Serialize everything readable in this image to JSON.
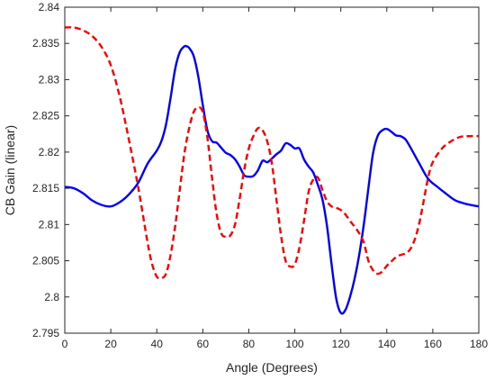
{
  "chart_data": {
    "type": "line",
    "xlabel": "Angle (Degrees)",
    "ylabel": "CB Gain (linear)",
    "xlim": [
      0,
      180
    ],
    "ylim": [
      2.795,
      2.84
    ],
    "xticks": [
      0,
      20,
      40,
      60,
      80,
      100,
      120,
      140,
      160,
      180
    ],
    "yticks": [
      2.795,
      2.8,
      2.805,
      2.81,
      2.815,
      2.82,
      2.825,
      2.83,
      2.835,
      2.84
    ],
    "ytick_labels": [
      "2.795",
      "2.8",
      "2.805",
      "2.81",
      "2.815",
      "2.82",
      "2.825",
      "2.83",
      "2.835",
      "2.84"
    ],
    "grid": false,
    "series": [
      {
        "color": "#0000ff",
        "style": "solid",
        "x": [
          0,
          4,
          8,
          12,
          16,
          20,
          24,
          28,
          32,
          36,
          40,
          42,
          44,
          46,
          48,
          50,
          52,
          53,
          54,
          56,
          58,
          60,
          62,
          64,
          66,
          68,
          70,
          72,
          74,
          76,
          78,
          80,
          82,
          84,
          86,
          88,
          90,
          92,
          94,
          96,
          98,
          100,
          102,
          104,
          106,
          108,
          110,
          112,
          114,
          116,
          118,
          120,
          122,
          124,
          126,
          128,
          130,
          132,
          134,
          136,
          138,
          140,
          142,
          144,
          146,
          148,
          150,
          154,
          158,
          162,
          166,
          170,
          175,
          180
        ],
        "y": [
          2.8152,
          2.815,
          2.8143,
          2.8133,
          2.8127,
          2.8125,
          2.8131,
          2.8142,
          2.8158,
          2.8184,
          2.8202,
          2.8215,
          2.8238,
          2.8275,
          2.8315,
          2.8338,
          2.8346,
          2.8346,
          2.8344,
          2.8333,
          2.8305,
          2.8265,
          2.823,
          2.8215,
          2.8213,
          2.8206,
          2.8199,
          2.8196,
          2.819,
          2.818,
          2.8168,
          2.8166,
          2.8167,
          2.8175,
          2.8188,
          2.8186,
          2.8191,
          2.8197,
          2.8202,
          2.8212,
          2.821,
          2.8205,
          2.8205,
          2.819,
          2.818,
          2.8172,
          2.8155,
          2.8135,
          2.8098,
          2.8045,
          2.7998,
          2.7978,
          2.7982,
          2.8,
          2.8025,
          2.8058,
          2.81,
          2.815,
          2.8198,
          2.8222,
          2.823,
          2.8232,
          2.8228,
          2.8223,
          2.8222,
          2.8218,
          2.8208,
          2.8185,
          2.8163,
          2.8152,
          2.8142,
          2.8133,
          2.8128,
          2.8125
        ]
      },
      {
        "color": "#ff0000",
        "style": "dashed",
        "x": [
          0,
          4,
          8,
          12,
          16,
          20,
          24,
          28,
          32,
          36,
          38,
          40,
          42,
          44,
          46,
          48,
          50,
          52,
          54,
          56,
          58,
          60,
          62,
          64,
          66,
          68,
          70,
          72,
          74,
          76,
          78,
          80,
          82,
          84,
          86,
          88,
          90,
          92,
          94,
          96,
          98,
          100,
          102,
          104,
          106,
          108,
          110,
          112,
          114,
          116,
          118,
          120,
          122,
          124,
          126,
          128,
          130,
          132,
          134,
          136,
          138,
          140,
          142,
          144,
          146,
          148,
          150,
          152,
          154,
          156,
          158,
          160,
          164,
          168,
          172,
          176,
          180
        ],
        "y": [
          2.8372,
          2.8372,
          2.8368,
          2.836,
          2.8345,
          2.832,
          2.8275,
          2.8215,
          2.815,
          2.8075,
          2.8045,
          2.8028,
          2.8026,
          2.8032,
          2.8058,
          2.8098,
          2.8148,
          2.8198,
          2.8232,
          2.8255,
          2.8262,
          2.8255,
          2.822,
          2.8165,
          2.8115,
          2.8088,
          2.8083,
          2.8085,
          2.81,
          2.8135,
          2.8175,
          2.8205,
          2.8222,
          2.8233,
          2.823,
          2.8215,
          2.8185,
          2.8135,
          2.8085,
          2.805,
          2.8042,
          2.8045,
          2.8068,
          2.8105,
          2.8145,
          2.8162,
          2.8165,
          2.8148,
          2.8132,
          2.8125,
          2.8123,
          2.812,
          2.8114,
          2.8105,
          2.8097,
          2.8088,
          2.8075,
          2.805,
          2.8037,
          2.8032,
          2.8035,
          2.8043,
          2.8049,
          2.8055,
          2.8058,
          2.806,
          2.8065,
          2.8078,
          2.81,
          2.8132,
          2.8165,
          2.8186,
          2.8205,
          2.8215,
          2.8221,
          2.8222,
          2.8222
        ]
      }
    ]
  }
}
